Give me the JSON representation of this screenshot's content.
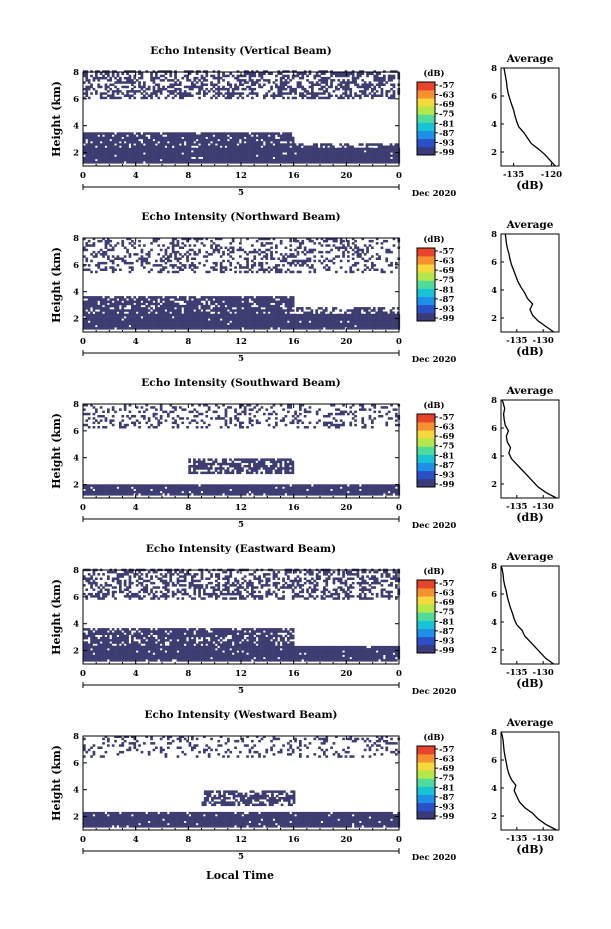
{
  "common": {
    "ylabel": "Height (km)",
    "xlabel": "Local Time",
    "date_label": "Dec 2020",
    "day_label": "5",
    "colorbar_unit": "(dB)",
    "colorbar_ticks": [
      "-57",
      "-63",
      "-69",
      "-75",
      "-81",
      "-87",
      "-93",
      "-99"
    ],
    "colorbar_colors": [
      "#3a3b7a",
      "#2a4fc6",
      "#1e90e8",
      "#19c3d6",
      "#4fdc9a",
      "#b4e84a",
      "#f4d83c",
      "#f7902e",
      "#e8432b"
    ],
    "avg_title": "Average",
    "avg_xlabel": "(dB)",
    "fill_color": "#3d3d72"
  },
  "chart_data": [
    {
      "type": "heatmap",
      "title": "Echo Intensity (Vertical Beam)",
      "xlabel": "Local Time",
      "ylabel": "Height (km)",
      "x_ticks": [
        "0",
        "4",
        "8",
        "12",
        "16",
        "20",
        "0"
      ],
      "xlim": [
        0,
        24
      ],
      "y_ticks": [
        "2",
        "4",
        "6",
        "8"
      ],
      "ylim": [
        1,
        8
      ],
      "colorbar_label": "(dB)",
      "colorbar_range": [
        -99,
        -57
      ],
      "echo_regions": [
        {
          "t": [
            0,
            24
          ],
          "h": [
            1.2,
            2.2
          ],
          "density": 0.97
        },
        {
          "t": [
            0,
            16
          ],
          "h": [
            2.2,
            3.5
          ],
          "density": 0.85
        },
        {
          "t": [
            16,
            24
          ],
          "h": [
            2.2,
            2.6
          ],
          "density": 0.6
        },
        {
          "t": [
            0,
            24
          ],
          "h": [
            6.0,
            8.0
          ],
          "density": 0.5
        }
      ],
      "average": {
        "title": "Average",
        "xlabel": "(dB)",
        "x_ticks": [
          "-135",
          "-120"
        ],
        "xlim": [
          -140,
          -117
        ],
        "y_ticks": [
          "2",
          "4",
          "6",
          "8"
        ],
        "ylim": [
          1,
          8
        ],
        "height": [
          1.0,
          1.4,
          1.8,
          2.2,
          2.6,
          3.0,
          3.4,
          3.8,
          4.2,
          4.6,
          5.0,
          5.4,
          5.8,
          6.2,
          6.6,
          7.0,
          7.4,
          7.8,
          8.0
        ],
        "value": [
          -118.5,
          -120.5,
          -122.5,
          -125,
          -128,
          -129.5,
          -131,
          -133,
          -133.8,
          -134.5,
          -135,
          -135.8,
          -136.5,
          -137.2,
          -137.6,
          -137.8,
          -138.2,
          -138.6,
          -138.8
        ]
      }
    },
    {
      "type": "heatmap",
      "title": "Echo Intensity (Northward Beam)",
      "xlabel": "Local Time",
      "ylabel": "Height (km)",
      "x_ticks": [
        "0",
        "4",
        "8",
        "12",
        "16",
        "20",
        "0"
      ],
      "xlim": [
        0,
        24
      ],
      "y_ticks": [
        "2",
        "4",
        "6",
        "8"
      ],
      "ylim": [
        1,
        8
      ],
      "colorbar_label": "(dB)",
      "colorbar_range": [
        -99,
        -57
      ],
      "echo_regions": [
        {
          "t": [
            0,
            24
          ],
          "h": [
            1.2,
            2.2
          ],
          "density": 0.97
        },
        {
          "t": [
            0,
            16
          ],
          "h": [
            2.2,
            3.6
          ],
          "density": 0.8
        },
        {
          "t": [
            16,
            24
          ],
          "h": [
            2.2,
            2.8
          ],
          "density": 0.5
        },
        {
          "t": [
            0,
            24
          ],
          "h": [
            5.4,
            8.0
          ],
          "density": 0.3
        }
      ],
      "average": {
        "title": "Average",
        "xlabel": "(dB)",
        "x_ticks": [
          "-135",
          "-130"
        ],
        "xlim": [
          -138,
          -127
        ],
        "y_ticks": [
          "2",
          "4",
          "6",
          "8"
        ],
        "ylim": [
          1,
          8
        ],
        "height": [
          1.0,
          1.4,
          1.8,
          2.2,
          2.6,
          3.0,
          3.4,
          3.8,
          4.2,
          4.6,
          5.0,
          5.4,
          5.8,
          6.2,
          6.6,
          7.0,
          7.4,
          7.8,
          8.0
        ],
        "value": [
          -128,
          -129.5,
          -131,
          -132,
          -132.5,
          -132,
          -133,
          -133.5,
          -134.2,
          -134.8,
          -135.2,
          -135.6,
          -136,
          -136.3,
          -136.5,
          -136.8,
          -137,
          -137.1,
          -137.2
        ]
      }
    },
    {
      "type": "heatmap",
      "title": "Echo Intensity (Southward Beam)",
      "xlabel": "Local Time",
      "ylabel": "Height (km)",
      "x_ticks": [
        "0",
        "4",
        "8",
        "12",
        "16",
        "20",
        "0"
      ],
      "xlim": [
        0,
        24
      ],
      "y_ticks": [
        "2",
        "4",
        "6",
        "8"
      ],
      "ylim": [
        1,
        8
      ],
      "colorbar_label": "(dB)",
      "colorbar_range": [
        -99,
        -57
      ],
      "echo_regions": [
        {
          "t": [
            0,
            24
          ],
          "h": [
            1.2,
            2.0
          ],
          "density": 0.95
        },
        {
          "t": [
            8,
            16
          ],
          "h": [
            2.8,
            3.8
          ],
          "density": 0.7
        },
        {
          "t": [
            0,
            24
          ],
          "h": [
            6.2,
            8.0
          ],
          "density": 0.25
        }
      ],
      "average": {
        "title": "Average",
        "xlabel": "(dB)",
        "x_ticks": [
          "-135",
          "-130"
        ],
        "xlim": [
          -138,
          -127
        ],
        "y_ticks": [
          "2",
          "4",
          "6",
          "8"
        ],
        "ylim": [
          1,
          8
        ],
        "height": [
          1.0,
          1.4,
          1.8,
          2.2,
          2.6,
          3.0,
          3.4,
          3.8,
          4.2,
          4.6,
          5.0,
          5.4,
          5.8,
          6.2,
          6.6,
          7.0,
          7.4,
          7.8,
          8.0
        ],
        "value": [
          -127.5,
          -129.5,
          -131,
          -132,
          -133,
          -134,
          -135,
          -136,
          -136.5,
          -136.2,
          -136.8,
          -137,
          -136.6,
          -137.2,
          -137.4,
          -137.5,
          -137.3,
          -137.6,
          -137.8
        ]
      }
    },
    {
      "type": "heatmap",
      "title": "Echo Intensity (Eastward Beam)",
      "xlabel": "Local Time",
      "ylabel": "Height (km)",
      "x_ticks": [
        "0",
        "4",
        "8",
        "12",
        "16",
        "20",
        "0"
      ],
      "xlim": [
        0,
        24
      ],
      "y_ticks": [
        "2",
        "4",
        "6",
        "8"
      ],
      "ylim": [
        1,
        8
      ],
      "colorbar_label": "(dB)",
      "colorbar_range": [
        -99,
        -57
      ],
      "echo_regions": [
        {
          "t": [
            0,
            24
          ],
          "h": [
            1.2,
            2.2
          ],
          "density": 0.95
        },
        {
          "t": [
            0,
            16
          ],
          "h": [
            2.2,
            3.6
          ],
          "density": 0.75
        },
        {
          "t": [
            0,
            24
          ],
          "h": [
            5.8,
            8.0
          ],
          "density": 0.45
        }
      ],
      "average": {
        "title": "Average",
        "xlabel": "(dB)",
        "x_ticks": [
          "-135",
          "-130"
        ],
        "xlim": [
          -138,
          -127
        ],
        "y_ticks": [
          "2",
          "4",
          "6",
          "8"
        ],
        "ylim": [
          1,
          8
        ],
        "height": [
          1.0,
          1.4,
          1.8,
          2.2,
          2.6,
          3.0,
          3.4,
          3.8,
          4.2,
          4.6,
          5.0,
          5.4,
          5.8,
          6.2,
          6.6,
          7.0,
          7.4,
          7.8,
          8.0
        ],
        "value": [
          -128,
          -129.5,
          -130.5,
          -131.5,
          -132.5,
          -133.5,
          -134,
          -135,
          -135.5,
          -135.8,
          -136.2,
          -136.5,
          -136.8,
          -137,
          -137.3,
          -137.5,
          -137.6,
          -137.8,
          -138
        ]
      }
    },
    {
      "type": "heatmap",
      "title": "Echo Intensity (Westward Beam)",
      "xlabel": "Local Time",
      "ylabel": "Height (km)",
      "x_ticks": [
        "0",
        "4",
        "8",
        "12",
        "16",
        "20",
        "0"
      ],
      "xlim": [
        0,
        24
      ],
      "y_ticks": [
        "2",
        "4",
        "6",
        "8"
      ],
      "ylim": [
        1,
        8
      ],
      "colorbar_label": "(dB)",
      "colorbar_range": [
        -99,
        -57
      ],
      "echo_regions": [
        {
          "t": [
            0,
            24
          ],
          "h": [
            1.2,
            2.2
          ],
          "density": 0.95
        },
        {
          "t": [
            9,
            16
          ],
          "h": [
            2.8,
            3.8
          ],
          "density": 0.6
        },
        {
          "t": [
            0,
            24
          ],
          "h": [
            6.4,
            8.0
          ],
          "density": 0.2
        }
      ],
      "average": {
        "title": "Average",
        "xlabel": "(dB)",
        "x_ticks": [
          "-135",
          "-130"
        ],
        "xlim": [
          -138,
          -127
        ],
        "y_ticks": [
          "2",
          "4",
          "6",
          "8"
        ],
        "ylim": [
          1,
          8
        ],
        "height": [
          1.0,
          1.4,
          1.8,
          2.2,
          2.6,
          3.0,
          3.4,
          3.8,
          4.2,
          4.6,
          5.0,
          5.4,
          5.8,
          6.2,
          6.6,
          7.0,
          7.4,
          7.8,
          8.0
        ],
        "value": [
          -127.5,
          -129.5,
          -131,
          -132,
          -133.5,
          -134.5,
          -135,
          -135.5,
          -135.2,
          -136,
          -136.5,
          -136.8,
          -137,
          -137.2,
          -137.4,
          -137.5,
          -137.6,
          -137.8,
          -138
        ]
      }
    }
  ]
}
